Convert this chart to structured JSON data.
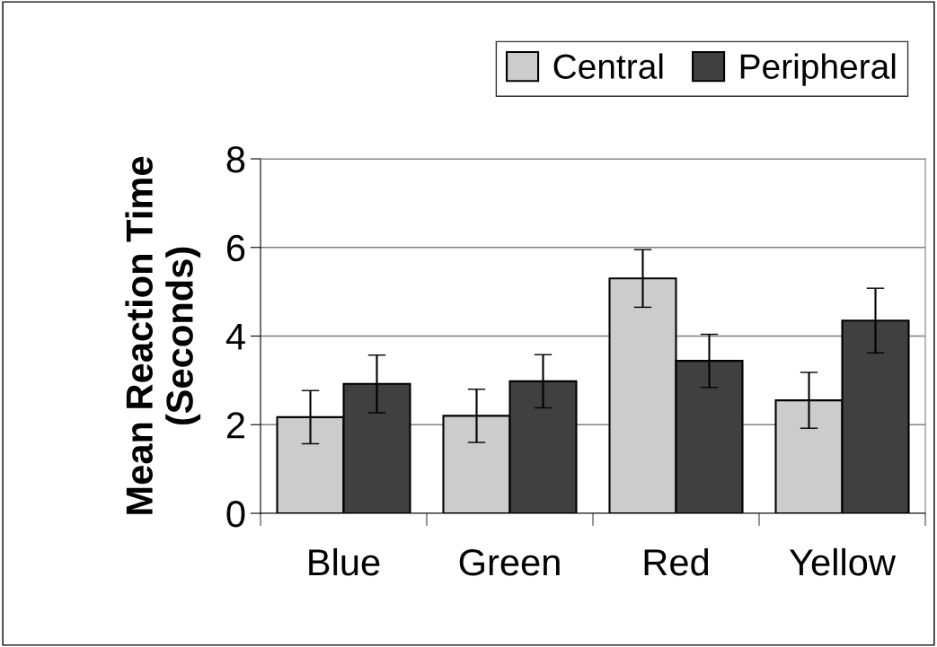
{
  "chart_data": {
    "type": "bar",
    "ylabel": "Mean Reaction Time\n(Seconds)",
    "categories": [
      "Blue",
      "Green",
      "Red",
      "Yellow"
    ],
    "series": [
      {
        "name": "Central",
        "color": "#cccccc",
        "values": [
          2.17,
          2.2,
          5.3,
          2.55
        ],
        "errors": [
          0.6,
          0.6,
          0.65,
          0.63
        ]
      },
      {
        "name": "Peripheral",
        "color": "#404040",
        "values": [
          2.92,
          2.98,
          3.44,
          4.35
        ],
        "errors": [
          0.65,
          0.6,
          0.6,
          0.73
        ]
      }
    ],
    "ylim": [
      0,
      8
    ],
    "yticks": [
      0,
      2,
      4,
      6,
      8
    ],
    "grid": "y",
    "legend": "top right"
  }
}
